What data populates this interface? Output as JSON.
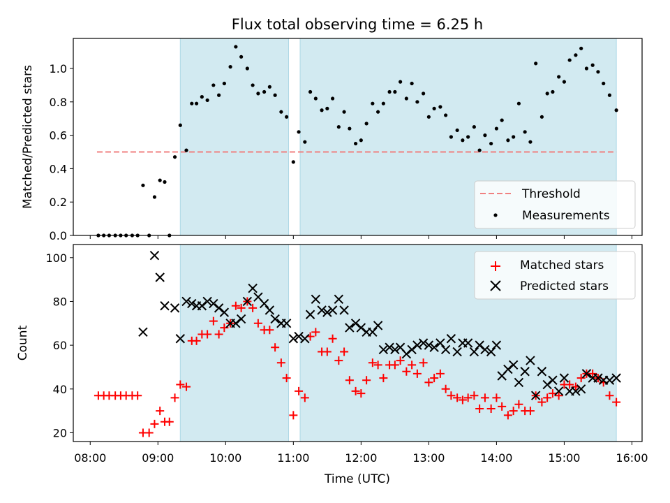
{
  "chart_data": [
    {
      "type": "scatter",
      "title": "Flux total observing time = 6.25 h",
      "xlabel": "",
      "ylabel": "Matched/Predicted stars",
      "xlim": [
        7.75,
        16.15
      ],
      "ylim": [
        0,
        1.18
      ],
      "yticks": [
        0.0,
        0.2,
        0.4,
        0.6,
        0.8,
        1.0
      ],
      "ytick_labels": [
        "0.0",
        "0.2",
        "0.4",
        "0.6",
        "0.8",
        "1.0"
      ],
      "grid": false,
      "legend_position": "bottom-right",
      "shaded_intervals": [
        [
          9.33,
          10.93
        ],
        [
          11.1,
          15.77
        ]
      ],
      "shade_color": "#add8e6",
      "threshold": {
        "name": "Threshold",
        "y": 0.5,
        "x_range": [
          8.1,
          15.77
        ],
        "color": "#f08080"
      },
      "series": [
        {
          "name": "Measurements",
          "color": "#000000",
          "x": [
            8.12,
            8.2,
            8.28,
            8.37,
            8.45,
            8.53,
            8.62,
            8.7,
            8.78,
            8.87,
            8.95,
            9.03,
            9.1,
            9.17,
            9.25,
            9.33,
            9.42,
            9.5,
            9.57,
            9.65,
            9.73,
            9.82,
            9.9,
            9.98,
            10.07,
            10.15,
            10.23,
            10.32,
            10.4,
            10.48,
            10.57,
            10.65,
            10.73,
            10.82,
            10.9,
            11.0,
            11.08,
            11.17,
            11.25,
            11.33,
            11.42,
            11.5,
            11.58,
            11.67,
            11.75,
            11.83,
            11.92,
            12.0,
            12.08,
            12.17,
            12.25,
            12.33,
            12.42,
            12.5,
            12.58,
            12.67,
            12.75,
            12.83,
            12.92,
            13.0,
            13.08,
            13.17,
            13.25,
            13.33,
            13.42,
            13.5,
            13.58,
            13.67,
            13.75,
            13.83,
            13.92,
            14.0,
            14.08,
            14.17,
            14.25,
            14.33,
            14.42,
            14.5,
            14.58,
            14.67,
            14.75,
            14.83,
            14.92,
            15.0,
            15.08,
            15.17,
            15.25,
            15.33,
            15.42,
            15.5,
            15.58,
            15.67,
            15.77
          ],
          "y": [
            0.0,
            0.0,
            0.0,
            0.0,
            0.0,
            0.0,
            0.0,
            0.0,
            0.3,
            0.0,
            0.23,
            0.33,
            0.32,
            0.0,
            0.47,
            0.66,
            0.51,
            0.79,
            0.79,
            0.83,
            0.81,
            0.9,
            0.84,
            0.91,
            1.01,
            1.13,
            1.07,
            1.0,
            0.9,
            0.85,
            0.86,
            0.89,
            0.84,
            0.74,
            0.71,
            0.44,
            0.62,
            0.56,
            0.86,
            0.82,
            0.75,
            0.76,
            0.82,
            0.65,
            0.74,
            0.64,
            0.55,
            0.57,
            0.67,
            0.79,
            0.74,
            0.79,
            0.86,
            0.86,
            0.92,
            0.82,
            0.91,
            0.8,
            0.85,
            0.71,
            0.76,
            0.77,
            0.72,
            0.59,
            0.63,
            0.57,
            0.59,
            0.65,
            0.51,
            0.6,
            0.55,
            0.64,
            0.69,
            0.57,
            0.59,
            0.79,
            0.62,
            0.56,
            1.03,
            0.71,
            0.85,
            0.86,
            0.95,
            0.92,
            1.05,
            1.08,
            1.12,
            1.0,
            1.02,
            0.98,
            0.91,
            0.84,
            0.75
          ]
        }
      ]
    },
    {
      "type": "scatter",
      "title": "",
      "xlabel": "Time (UTC)",
      "ylabel": "Count",
      "xlim": [
        7.75,
        16.15
      ],
      "ylim": [
        16,
        106
      ],
      "xticks": [
        8,
        9,
        10,
        11,
        12,
        13,
        14,
        15,
        16
      ],
      "xtick_labels": [
        "08:00",
        "09:00",
        "10:00",
        "11:00",
        "12:00",
        "13:00",
        "14:00",
        "15:00",
        "16:00"
      ],
      "yticks": [
        20,
        40,
        60,
        80,
        100
      ],
      "ytick_labels": [
        "20",
        "40",
        "60",
        "80",
        "100"
      ],
      "grid": false,
      "legend_position": "top-right",
      "shaded_intervals": [
        [
          9.33,
          10.93
        ],
        [
          11.1,
          15.77
        ]
      ],
      "shade_color": "#add8e6",
      "series": [
        {
          "name": "Matched stars",
          "marker": "plus",
          "color": "#ff0000",
          "x": [
            8.12,
            8.2,
            8.28,
            8.37,
            8.45,
            8.53,
            8.62,
            8.7,
            8.78,
            8.87,
            8.95,
            9.03,
            9.1,
            9.17,
            9.25,
            9.33,
            9.42,
            9.5,
            9.57,
            9.65,
            9.73,
            9.82,
            9.9,
            9.98,
            10.07,
            10.15,
            10.23,
            10.32,
            10.4,
            10.48,
            10.57,
            10.65,
            10.73,
            10.82,
            10.9,
            11.0,
            11.08,
            11.17,
            11.25,
            11.33,
            11.42,
            11.5,
            11.58,
            11.67,
            11.75,
            11.83,
            11.92,
            12.0,
            12.08,
            12.17,
            12.25,
            12.33,
            12.42,
            12.5,
            12.58,
            12.67,
            12.75,
            12.83,
            12.92,
            13.0,
            13.08,
            13.17,
            13.25,
            13.33,
            13.42,
            13.5,
            13.58,
            13.67,
            13.75,
            13.83,
            13.92,
            14.0,
            14.08,
            14.17,
            14.25,
            14.33,
            14.42,
            14.5,
            14.58,
            14.67,
            14.75,
            14.83,
            14.92,
            15.0,
            15.08,
            15.17,
            15.25,
            15.33,
            15.42,
            15.5,
            15.58,
            15.67,
            15.77
          ],
          "y": [
            37,
            37,
            37,
            37,
            37,
            37,
            37,
            37,
            20,
            20,
            24,
            30,
            25,
            25,
            36,
            42,
            41,
            62,
            62,
            65,
            65,
            71,
            65,
            68,
            70,
            78,
            77,
            80,
            77,
            70,
            67,
            67,
            59,
            52,
            45,
            28,
            39,
            36,
            64,
            66,
            57,
            57,
            63,
            53,
            57,
            44,
            39,
            38,
            44,
            52,
            51,
            45,
            51,
            51,
            53,
            48,
            51,
            47,
            52,
            43,
            45,
            47,
            40,
            37,
            36,
            35,
            36,
            37,
            31,
            36,
            31,
            36,
            32,
            28,
            30,
            33,
            30,
            30,
            37,
            34,
            36,
            38,
            37,
            42,
            42,
            41,
            45,
            47,
            47,
            45,
            43,
            37,
            34
          ]
        },
        {
          "name": "Predicted stars",
          "marker": "x",
          "color": "#000000",
          "x": [
            8.78,
            8.95,
            9.03,
            9.1,
            9.25,
            9.33,
            9.42,
            9.5,
            9.57,
            9.65,
            9.73,
            9.82,
            9.9,
            9.98,
            10.07,
            10.15,
            10.23,
            10.32,
            10.4,
            10.48,
            10.57,
            10.65,
            10.73,
            10.82,
            10.9,
            11.0,
            11.08,
            11.17,
            11.25,
            11.33,
            11.42,
            11.5,
            11.58,
            11.67,
            11.75,
            11.83,
            11.92,
            12.0,
            12.08,
            12.17,
            12.25,
            12.33,
            12.42,
            12.5,
            12.58,
            12.67,
            12.75,
            12.83,
            12.92,
            13.0,
            13.08,
            13.17,
            13.25,
            13.33,
            13.42,
            13.5,
            13.58,
            13.67,
            13.75,
            13.83,
            13.92,
            14.0,
            14.08,
            14.17,
            14.25,
            14.33,
            14.42,
            14.5,
            14.58,
            14.67,
            14.75,
            14.83,
            14.92,
            15.0,
            15.08,
            15.17,
            15.25,
            15.33,
            15.42,
            15.5,
            15.58,
            15.67,
            15.77
          ],
          "y": [
            66,
            101,
            91,
            78,
            77,
            63,
            80,
            79,
            78,
            78,
            80,
            79,
            77,
            75,
            70,
            70,
            72,
            80,
            86,
            82,
            79,
            76,
            72,
            70,
            70,
            63,
            64,
            63,
            74,
            81,
            76,
            75,
            76,
            81,
            76,
            68,
            70,
            68,
            66,
            66,
            69,
            58,
            59,
            58,
            59,
            56,
            58,
            60,
            61,
            60,
            59,
            61,
            58,
            63,
            57,
            61,
            61,
            57,
            60,
            58,
            57,
            60,
            46,
            49,
            51,
            43,
            48,
            53,
            37,
            48,
            42,
            44,
            39,
            45,
            39,
            39,
            40,
            47,
            45,
            45,
            44,
            44,
            45
          ]
        }
      ]
    }
  ]
}
